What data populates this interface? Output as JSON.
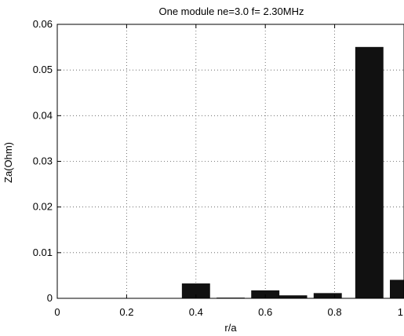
{
  "chart_data": {
    "type": "bar",
    "title": "One module ne=3.0   f= 2.30MHz",
    "xlabel": "r/a",
    "ylabel": "Za(Ohm)",
    "xlim": [
      0,
      1.0
    ],
    "ylim": [
      0,
      0.06
    ],
    "x_ticks": [
      {
        "value": 0,
        "label": "0"
      },
      {
        "value": 0.2,
        "label": "0.2"
      },
      {
        "value": 0.4,
        "label": "0.4"
      },
      {
        "value": 0.6,
        "label": "0.6"
      },
      {
        "value": 0.8,
        "label": "0.8"
      },
      {
        "value": 1.0,
        "label": "1"
      }
    ],
    "y_ticks": [
      {
        "value": 0,
        "label": "0"
      },
      {
        "value": 0.01,
        "label": "0.01"
      },
      {
        "value": 0.02,
        "label": "0.02"
      },
      {
        "value": 0.03,
        "label": "0.03"
      },
      {
        "value": 0.04,
        "label": "0.04"
      },
      {
        "value": 0.05,
        "label": "0.05"
      },
      {
        "value": 0.06,
        "label": "0.06"
      }
    ],
    "bar_width": 0.08,
    "series": [
      {
        "x": [
          0.05,
          0.15,
          0.25,
          0.4,
          0.5,
          0.6,
          0.68,
          0.78,
          0.9,
          1.0
        ],
        "values": [
          0.0,
          0.0,
          0.0,
          0.0032,
          0.0001,
          0.0017,
          0.0006,
          0.0011,
          0.055,
          0.004
        ]
      }
    ],
    "bar_color": "#111111",
    "grid": true,
    "grid_style": "dotted"
  }
}
